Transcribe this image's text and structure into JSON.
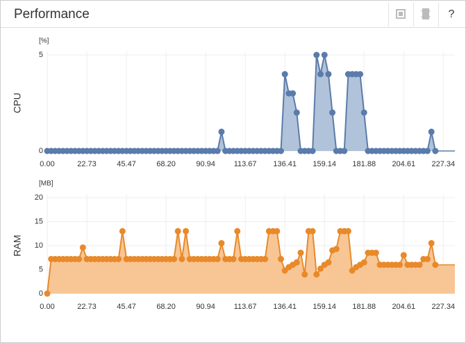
{
  "header": {
    "title": "Performance"
  },
  "chart_data": [
    {
      "type": "line",
      "y_label": "CPU",
      "unit": "[%]",
      "color": "#5a7bab",
      "fill": "#a9bcd6",
      "xlim": [
        0,
        234
      ],
      "ylim": [
        0,
        5
      ],
      "yticks": [
        0,
        5
      ],
      "grid": true,
      "xticks": [
        {
          "value": 0,
          "label": "0.00"
        },
        22.73,
        45.47,
        {
          "value": 68.2,
          "label": "68.20"
        },
        90.94,
        113.67,
        136.41,
        159.14,
        181.88,
        204.61,
        227.34
      ],
      "x": [
        0,
        2.27,
        4.55,
        6.82,
        9.09,
        11.37,
        13.64,
        15.91,
        18.19,
        20.46,
        22.73,
        25.01,
        27.28,
        29.55,
        31.83,
        34.1,
        36.37,
        38.65,
        40.92,
        43.19,
        45.47,
        47.74,
        50.01,
        52.29,
        54.56,
        56.84,
        59.11,
        61.38,
        63.66,
        65.93,
        68.2,
        70.48,
        72.75,
        75.02,
        77.3,
        79.57,
        81.84,
        84.12,
        86.39,
        88.66,
        90.94,
        93.21,
        95.48,
        97.76,
        100.03,
        102.3,
        104.58,
        106.85,
        109.12,
        111.4,
        113.67,
        115.94,
        118.22,
        120.49,
        122.76,
        125.04,
        127.31,
        129.58,
        131.86,
        134.13,
        136.4,
        138.68,
        140.95,
        143.22,
        145.5,
        147.77,
        150.04,
        152.32,
        154.59,
        156.86,
        159.14,
        161.41,
        163.68,
        165.96,
        168.23,
        170.51,
        172.78,
        175.05,
        177.33,
        179.6,
        181.87,
        184.15,
        186.42,
        188.69,
        190.97,
        193.24,
        195.51,
        197.79,
        200.06,
        202.33,
        204.61,
        206.88,
        209.15,
        211.43,
        213.7,
        215.97,
        218.25,
        220.52,
        222.79
      ],
      "series": [
        {
          "name": "CPU",
          "color": "#5a7bab",
          "values": [
            0,
            0,
            0,
            0,
            0,
            0,
            0,
            0,
            0,
            0,
            0,
            0,
            0,
            0,
            0,
            0,
            0,
            0,
            0,
            0,
            0,
            0,
            0,
            0,
            0,
            0,
            0,
            0,
            0,
            0,
            0,
            0,
            0,
            0,
            0,
            0,
            0,
            0,
            0,
            0,
            0,
            0,
            0,
            0,
            1,
            0,
            0,
            0,
            0,
            0,
            0,
            0,
            0,
            0,
            0,
            0,
            0,
            0,
            0,
            0,
            4,
            3,
            3,
            2,
            0,
            0,
            0,
            0,
            5,
            4,
            5,
            4,
            2,
            0,
            0,
            0,
            4,
            4,
            4,
            4,
            2,
            0,
            0,
            0,
            0,
            0,
            0,
            0,
            0,
            0,
            0,
            0,
            0,
            0,
            0,
            0,
            0,
            1,
            0
          ]
        }
      ]
    },
    {
      "type": "line",
      "y_label": "RAM",
      "unit": "[MB]",
      "color": "#e8892a",
      "fill": "#f7c08a",
      "xlim": [
        0,
        234
      ],
      "ylim": [
        0,
        20
      ],
      "yticks": [
        0,
        5,
        10,
        15,
        20
      ],
      "grid": true,
      "xticks": [
        {
          "value": 0,
          "label": "0.00"
        },
        22.73,
        45.47,
        {
          "value": 68.2,
          "label": "68.20"
        },
        90.94,
        113.67,
        136.41,
        159.14,
        181.88,
        204.61,
        227.34
      ],
      "x": [
        0,
        2.27,
        4.55,
        6.82,
        9.09,
        11.37,
        13.64,
        15.91,
        18.19,
        20.46,
        22.73,
        25.01,
        27.28,
        29.55,
        31.83,
        34.1,
        36.37,
        38.65,
        40.92,
        43.19,
        45.47,
        47.74,
        50.01,
        52.29,
        54.56,
        56.84,
        59.11,
        61.38,
        63.66,
        65.93,
        68.2,
        70.48,
        72.75,
        75.02,
        77.3,
        79.57,
        81.84,
        84.12,
        86.39,
        88.66,
        90.94,
        93.21,
        95.48,
        97.76,
        100.03,
        102.3,
        104.58,
        106.85,
        109.12,
        111.4,
        113.67,
        115.94,
        118.22,
        120.49,
        122.76,
        125.04,
        127.31,
        129.58,
        131.86,
        134.13,
        136.4,
        138.68,
        140.95,
        143.22,
        145.5,
        147.77,
        150.04,
        152.32,
        154.59,
        156.86,
        159.14,
        161.41,
        163.68,
        165.96,
        168.23,
        170.51,
        172.78,
        175.05,
        177.33,
        179.6,
        181.87,
        184.15,
        186.42,
        188.69,
        190.97,
        193.24,
        195.51,
        197.79,
        200.06,
        202.33,
        204.61,
        206.88,
        209.15,
        211.43,
        213.7,
        215.97,
        218.25,
        220.52,
        222.79
      ],
      "series": [
        {
          "name": "RAM",
          "color": "#e8892a",
          "values": [
            0,
            7.2,
            7.2,
            7.2,
            7.2,
            7.2,
            7.2,
            7.2,
            7.2,
            9.6,
            7.2,
            7.2,
            7.2,
            7.2,
            7.2,
            7.2,
            7.2,
            7.2,
            7.2,
            13,
            7.2,
            7.2,
            7.2,
            7.2,
            7.2,
            7.2,
            7.2,
            7.2,
            7.2,
            7.2,
            7.2,
            7.2,
            7.2,
            13,
            7.2,
            13,
            7.2,
            7.2,
            7.2,
            7.2,
            7.2,
            7.2,
            7.2,
            7.2,
            10.5,
            7.2,
            7.2,
            7.2,
            13,
            7.2,
            7.2,
            7.2,
            7.2,
            7.2,
            7.2,
            7.2,
            13,
            13,
            13,
            7.2,
            4.8,
            5.5,
            6,
            6.5,
            8.5,
            4,
            13,
            13,
            4,
            5.2,
            6,
            6.5,
            9,
            9.3,
            13,
            13,
            13,
            4.8,
            5.5,
            6,
            6.5,
            8.5,
            8.5,
            8.5,
            6,
            6,
            6,
            6,
            6,
            6,
            8,
            6,
            6,
            6,
            6,
            7.2,
            7.2,
            10.5,
            6
          ]
        }
      ]
    }
  ]
}
